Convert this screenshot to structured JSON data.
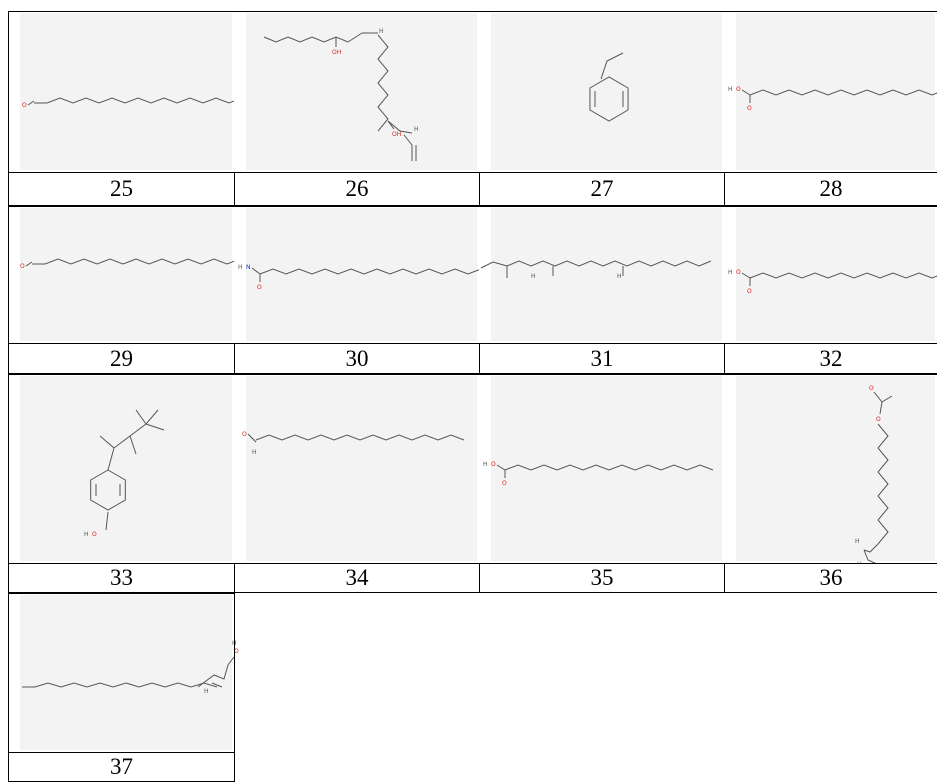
{
  "compounds": [
    {
      "number": "25",
      "atoms": [
        {
          "t": "O",
          "c": "#e02020"
        }
      ]
    },
    {
      "number": "26",
      "atoms": [
        {
          "t": "OH",
          "c": "#e02020"
        },
        {
          "t": "OH",
          "c": "#e02020"
        },
        {
          "t": "H",
          "c": "#555555"
        },
        {
          "t": "H",
          "c": "#555555"
        }
      ]
    },
    {
      "number": "27",
      "atoms": []
    },
    {
      "number": "28",
      "atoms": [
        {
          "t": "H",
          "c": "#555555"
        },
        {
          "t": "O",
          "c": "#e02020"
        },
        {
          "t": "O",
          "c": "#e02020"
        }
      ]
    },
    {
      "number": "29",
      "atoms": [
        {
          "t": "O",
          "c": "#e02020"
        }
      ]
    },
    {
      "number": "30",
      "atoms": [
        {
          "t": "H",
          "c": "#555555"
        },
        {
          "t": "N",
          "c": "#2030d0"
        },
        {
          "t": "O",
          "c": "#e02020"
        }
      ]
    },
    {
      "number": "31",
      "atoms": [
        {
          "t": "H",
          "c": "#555555"
        },
        {
          "t": "H",
          "c": "#555555"
        }
      ]
    },
    {
      "number": "32",
      "atoms": [
        {
          "t": "H",
          "c": "#555555"
        },
        {
          "t": "O",
          "c": "#e02020"
        },
        {
          "t": "O",
          "c": "#e02020"
        }
      ]
    },
    {
      "number": "33",
      "atoms": [
        {
          "t": "H",
          "c": "#555555"
        },
        {
          "t": "O",
          "c": "#e02020"
        }
      ]
    },
    {
      "number": "34",
      "atoms": [
        {
          "t": "O",
          "c": "#e02020"
        },
        {
          "t": "H",
          "c": "#555555"
        }
      ]
    },
    {
      "number": "35",
      "atoms": [
        {
          "t": "H",
          "c": "#555555"
        },
        {
          "t": "O",
          "c": "#e02020"
        },
        {
          "t": "O",
          "c": "#e02020"
        }
      ]
    },
    {
      "number": "36",
      "atoms": [
        {
          "t": "O",
          "c": "#e02020"
        },
        {
          "t": "O",
          "c": "#e02020"
        },
        {
          "t": "H",
          "c": "#555555"
        },
        {
          "t": "H",
          "c": "#555555"
        },
        {
          "t": "O",
          "c": "#e02020"
        }
      ]
    },
    {
      "number": "37",
      "atoms": [
        {
          "t": "O",
          "c": "#e02020"
        },
        {
          "t": "H",
          "c": "#555555"
        },
        {
          "t": "H",
          "c": "#555555"
        }
      ]
    }
  ]
}
